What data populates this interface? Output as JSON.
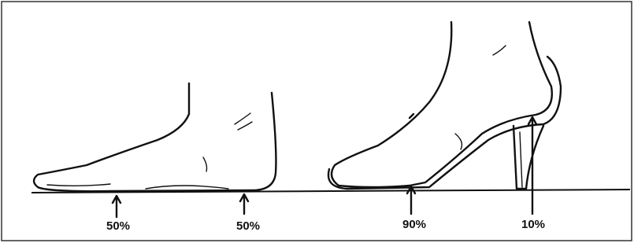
{
  "labels": [
    "50%",
    "50%",
    "90%",
    "10%"
  ]
}
